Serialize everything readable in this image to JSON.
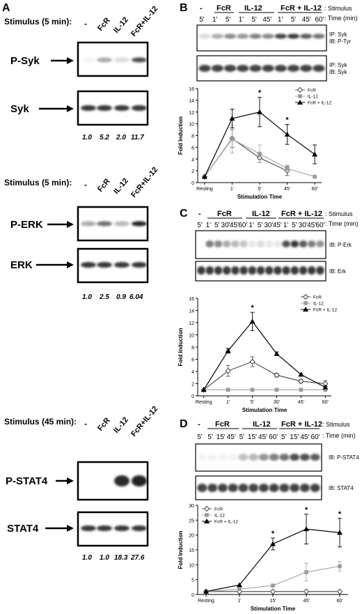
{
  "panelA": {
    "letter": "A",
    "blocks": [
      {
        "stimulus": "Stimulus (5 min):",
        "lanes": [
          "-",
          "FcR",
          "IL-12",
          "FcR+IL-12"
        ],
        "blot_top": "P-Syk",
        "blot_bottom": "Syk",
        "quant": [
          "1.0",
          "5.2",
          "2.0",
          "11.7"
        ],
        "intensity": [
          0.04,
          0.35,
          0.15,
          0.75
        ]
      },
      {
        "stimulus": "Stimulus (5 min):",
        "lanes": [
          "-",
          "FcR",
          "IL-12",
          "FcR+IL-12"
        ],
        "blot_top": "P-ERK",
        "blot_bottom": "ERK",
        "quant": [
          "1.0",
          "2.5",
          "0.9",
          "6.04"
        ],
        "intensity": [
          0.35,
          0.6,
          0.3,
          0.95
        ]
      },
      {
        "stimulus": "Stimulus (45 min):",
        "lanes": [
          "-",
          "FcR",
          "IL-12",
          "FcR+IL-12"
        ],
        "blot_top": "P-STAT4",
        "blot_bottom": "STAT4",
        "quant": [
          "1.0",
          "1.0",
          "18.3",
          "27.6"
        ],
        "intensity": [
          0.0,
          0.0,
          0.9,
          0.95
        ]
      }
    ]
  },
  "panelB": {
    "letter": "B",
    "minus": "-",
    "groups": [
      "FcR",
      "IL-12",
      "FcR + IL-12"
    ],
    "times": [
      "5'",
      "1'",
      "5'",
      "1'",
      "5'",
      "45'",
      "1'",
      "5'",
      "45'",
      "60'"
    ],
    "stimulus_label": ": Stimulus",
    "time_label": ": Time (min)",
    "blot1_label": [
      "IP: Syk",
      "IB: P-Tyr"
    ],
    "blot2_label": [
      "IP: Syk",
      "IB: Syk"
    ]
  },
  "panelC": {
    "letter": "C",
    "minus": "-",
    "groups": [
      "FcR",
      "IL-12",
      "FcR + IL-12"
    ],
    "times": [
      "5'",
      "1'",
      "5'",
      "30'",
      "45'",
      "60'",
      "1'",
      "5'",
      "30'",
      "45'",
      "1'",
      "5'",
      "30'",
      "45'",
      "60'"
    ],
    "stimulus_label": ": Stimulus",
    "time_label": ": Time (min)",
    "blot1_label": "IB: P-Erk",
    "blot2_label": "IB: Erk"
  },
  "panelD": {
    "letter": "D",
    "minus": "-",
    "groups": [
      "FcR",
      "IL-12",
      "FcR + IL-12"
    ],
    "times": [
      "5'",
      "5'",
      "15'",
      "45'",
      "5'",
      "15'",
      "45'",
      "60'",
      "5'",
      "15'",
      "45'",
      "60'"
    ],
    "stimulus_label": ": Stimulus",
    "time_label": ": Time (min)",
    "blot1_label": "IB: P-STAT4",
    "blot2_label": "IB: STAT4"
  },
  "chart_data": [
    {
      "type": "line",
      "categories": [
        "Resting",
        "1'",
        "5'",
        "45'",
        "60'"
      ],
      "xlabel": "Stimulation Time",
      "ylabel": "Fold Induction",
      "ylim": [
        0,
        16
      ],
      "yticks": [
        "0",
        "2",
        "4",
        "6",
        "8",
        "10",
        "12",
        "14",
        "16"
      ],
      "legend_position": "top-right",
      "series": [
        {
          "name": "FcR",
          "values": [
            1,
            7.5,
            4.2,
            2.0,
            null
          ],
          "errors": [
            0,
            1.5,
            0.8,
            0.8,
            0
          ],
          "marker": "open-diamond"
        },
        {
          "name": "IL-12",
          "values": [
            1,
            7.4,
            4.9,
            2.4,
            1.0
          ],
          "errors": [
            0,
            2.4,
            1.5,
            0.6,
            0
          ],
          "marker": "gray-square"
        },
        {
          "name": "FcR + IL-12",
          "values": [
            1,
            10.9,
            12.0,
            8.2,
            4.8
          ],
          "errors": [
            0,
            1.6,
            2.5,
            1.7,
            1.6
          ],
          "marker": "filled-triangle"
        }
      ],
      "annotations": [
        {
          "x": "5'",
          "text": "*"
        },
        {
          "x": "45'",
          "text": "*"
        }
      ]
    },
    {
      "type": "line",
      "categories": [
        "Resting",
        "1'",
        "5'",
        "30'",
        "45'",
        "60'"
      ],
      "xlabel": "Stimulation Time",
      "ylabel": "Fold Induction",
      "ylim": [
        0,
        16
      ],
      "yticks": [
        "0",
        "2",
        "4",
        "6",
        "8",
        "10",
        "12",
        "14",
        "16"
      ],
      "legend_position": "top-right",
      "series": [
        {
          "name": "FcR",
          "values": [
            1,
            4.1,
            5.6,
            3.4,
            2.4,
            2.0
          ],
          "errors": [
            0,
            0.9,
            0.8,
            0.3,
            0.3,
            0.5
          ],
          "marker": "open-diamond"
        },
        {
          "name": "IL-12",
          "values": [
            1,
            1.0,
            1.0,
            1.0,
            1.0,
            1.0
          ],
          "errors": [
            0,
            0,
            0,
            0,
            0,
            0
          ],
          "marker": "gray-square"
        },
        {
          "name": "FcR + IL-12",
          "values": [
            1,
            7.4,
            12.2,
            6.9,
            3.5,
            1.4
          ],
          "errors": [
            0,
            0.4,
            1.5,
            0.3,
            0.2,
            0.2
          ],
          "marker": "filled-triangle"
        }
      ],
      "annotations": [
        {
          "x": "5'",
          "text": "*"
        }
      ]
    },
    {
      "type": "line",
      "categories": [
        "Resting",
        "1'",
        "15'",
        "45'",
        "60'"
      ],
      "xlabel": "Stimulation Time",
      "ylabel": "Fold Induction",
      "ylim": [
        0,
        30
      ],
      "yticks": [
        "0",
        "5",
        "10",
        "15",
        "20",
        "25",
        "30"
      ],
      "legend_position": "top-left",
      "series": [
        {
          "name": "FcR",
          "values": [
            1,
            1,
            1,
            1,
            1
          ],
          "errors": [
            0,
            0,
            0,
            0,
            0
          ],
          "marker": "open-diamond"
        },
        {
          "name": "IL-12",
          "values": [
            1,
            1.8,
            3.0,
            7.5,
            9.5
          ],
          "errors": [
            0,
            0,
            0.5,
            3.0,
            1.6
          ],
          "marker": "gray-square"
        },
        {
          "name": "FcR + IL-12",
          "values": [
            1,
            3.2,
            17.0,
            22.0,
            20.8
          ],
          "errors": [
            0,
            0,
            2.0,
            5.0,
            4.8
          ],
          "marker": "filled-triangle"
        }
      ],
      "annotations": [
        {
          "x": "15'",
          "text": "*"
        },
        {
          "x": "45'",
          "text": "*"
        },
        {
          "x": "60'",
          "text": "*"
        }
      ]
    }
  ]
}
